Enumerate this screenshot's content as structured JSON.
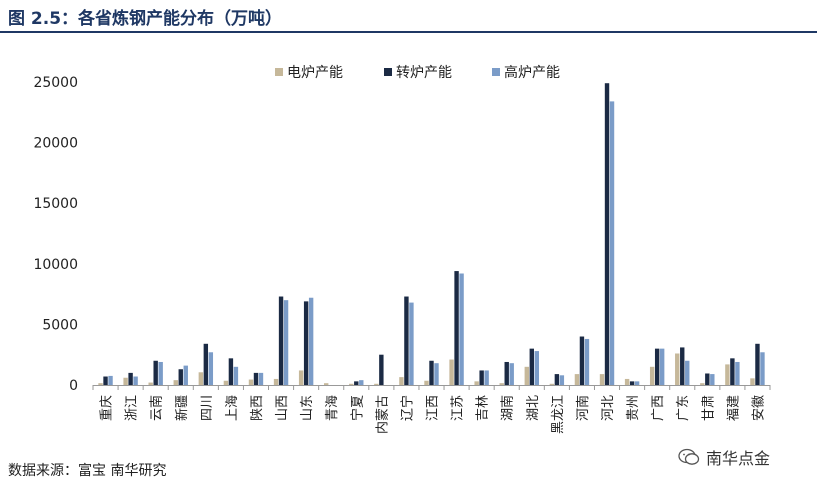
{
  "title": "图 2.5：各省炼钢产能分布（万吨）",
  "source": "数据来源：富宝  南华研究",
  "watermark": "南华点金",
  "chart_data": {
    "type": "bar",
    "ylim": [
      0,
      25000
    ],
    "yticks": [
      0,
      5000,
      10000,
      15000,
      20000,
      25000
    ],
    "legend_position": "top-center",
    "categories": [
      "重庆",
      "浙江",
      "云南",
      "新疆",
      "四川",
      "上海",
      "陕西",
      "山西",
      "山东",
      "青海",
      "宁夏",
      "内蒙古",
      "辽宁",
      "江西",
      "江苏",
      "吉林",
      "湖南",
      "湖北",
      "黑龙江",
      "河南",
      "河北",
      "贵州",
      "广西",
      "广东",
      "甘肃",
      "福建",
      "安徽"
    ],
    "series": [
      {
        "name": "电炉产能",
        "color": "#c6b89a",
        "values": [
          150,
          600,
          200,
          400,
          1050,
          350,
          450,
          500,
          1200,
          150,
          100,
          100,
          650,
          350,
          2100,
          300,
          150,
          1500,
          100,
          900,
          900,
          500,
          1500,
          2600,
          150,
          1700,
          550
        ]
      },
      {
        "name": "转炉产能",
        "color": "#1b2a44",
        "values": [
          700,
          1000,
          2000,
          1300,
          3400,
          2200,
          1000,
          7300,
          6900,
          0,
          300,
          2500,
          7300,
          2000,
          9400,
          1200,
          1900,
          3000,
          900,
          4000,
          24900,
          300,
          3000,
          3100,
          950,
          2200,
          3400
        ]
      },
      {
        "name": "高炉产能",
        "color": "#7b9cc8",
        "values": [
          750,
          700,
          1900,
          1600,
          2700,
          1500,
          1000,
          7000,
          7200,
          0,
          400,
          0,
          6800,
          1800,
          9200,
          1200,
          1800,
          2800,
          800,
          3800,
          23400,
          300,
          3000,
          2000,
          900,
          1900,
          2700
        ]
      }
    ]
  }
}
